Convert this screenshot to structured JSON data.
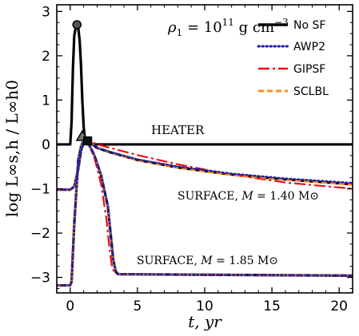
{
  "chart_data": {
    "type": "line",
    "xlabel": "t,  yr",
    "ylabel": "log L∞s,h / L∞h0",
    "xlim": [
      -1,
      21
    ],
    "ylim": [
      -3.35,
      3.15
    ],
    "xticks": [
      0,
      5,
      10,
      15,
      20
    ],
    "yticks": [
      -3,
      -2,
      -1,
      0,
      1,
      2,
      3
    ],
    "grid": false,
    "legend_position": "top-right",
    "colors": {
      "no_sf": "#000000",
      "awp2": "#2222aa",
      "gipsf": "#e8101a",
      "sclbl": "#ff8c1a"
    },
    "annotations": {
      "density": "ρ1 = 10^11 g cm^-3",
      "density_prefix": "ρ",
      "density_sub": "1",
      "density_eq": " = 10",
      "density_exp": "11",
      "density_unit": " g cm",
      "density_unit_exp": "−3",
      "heater": "HEATER",
      "surface_140": "SURFACE, M = 1.40 M⊙",
      "surface_140_prefix": "SURFACE,",
      "surface_140_var": "M",
      "surface_140_val": "= 1.40 M⊙",
      "surface_185": "SURFACE, M = 1.85 M⊙",
      "surface_185_prefix": "SURFACE,",
      "surface_185_var": "M",
      "surface_185_val": "= 1.85 M⊙"
    },
    "legend": [
      {
        "name": "No SF",
        "key": "no_sf",
        "dash": "solid",
        "width": 3.2
      },
      {
        "name": "AWP2",
        "key": "awp2",
        "dash": "dotted",
        "width": 2.6
      },
      {
        "name": "GIPSF",
        "key": "gipsf",
        "dash": "longdash",
        "width": 2.2
      },
      {
        "name": "SCLBL",
        "key": "sclbl",
        "dash": "dashed",
        "width": 2.6
      }
    ],
    "series": [
      {
        "curve": "heater",
        "key": "no_sf",
        "x": [
          -1,
          0,
          0.1,
          0.2,
          0.3,
          0.4,
          0.5,
          0.6,
          0.7,
          0.8,
          0.9,
          1.0,
          1.1,
          1.2,
          1.3,
          21
        ],
        "y": [
          0,
          0,
          0.5,
          1.7,
          2.45,
          2.62,
          2.7,
          2.62,
          2.35,
          1.8,
          1.0,
          0.4,
          0.1,
          0.02,
          0,
          0
        ]
      },
      {
        "curve": "surface_140",
        "key": "no_sf",
        "x": [
          -1,
          0,
          0.3,
          0.6,
          0.8,
          1.0,
          1.3,
          2.0,
          3.0,
          5.0,
          8.0,
          12.0,
          16.0,
          21.0
        ],
        "y": [
          -1.02,
          -1.02,
          -0.95,
          -0.55,
          -0.15,
          0.05,
          0.08,
          -0.08,
          -0.18,
          -0.35,
          -0.52,
          -0.68,
          -0.79,
          -0.9
        ]
      },
      {
        "curve": "surface_140",
        "key": "awp2",
        "x": [
          -1,
          0,
          0.3,
          0.6,
          0.8,
          1.0,
          1.3,
          2.0,
          3.0,
          5.0,
          8.0,
          12.0,
          16.0,
          21.0
        ],
        "y": [
          -1.02,
          -1.02,
          -0.95,
          -0.55,
          -0.15,
          0.05,
          0.08,
          -0.08,
          -0.18,
          -0.34,
          -0.5,
          -0.66,
          -0.77,
          -0.87
        ]
      },
      {
        "curve": "surface_140",
        "key": "gipsf",
        "x": [
          -1,
          0,
          0.3,
          0.6,
          0.8,
          1.0,
          1.3,
          2.0,
          3.0,
          5.0,
          8.0,
          12.0,
          16.0,
          21.0
        ],
        "y": [
          -1.02,
          -1.02,
          -0.93,
          -0.5,
          -0.12,
          0.06,
          0.09,
          0.0,
          -0.08,
          -0.24,
          -0.45,
          -0.68,
          -0.86,
          -1.0
        ]
      },
      {
        "curve": "surface_140",
        "key": "sclbl",
        "x": [
          -1,
          0,
          0.3,
          0.6,
          0.8,
          1.0,
          1.3,
          2.0,
          3.0,
          5.0,
          8.0,
          12.0,
          16.0,
          21.0
        ],
        "y": [
          -1.02,
          -1.02,
          -0.95,
          -0.55,
          -0.15,
          0.05,
          0.08,
          -0.08,
          -0.19,
          -0.36,
          -0.53,
          -0.69,
          -0.8,
          -0.91
        ]
      },
      {
        "curve": "surface_185",
        "key": "no_sf",
        "x": [
          -1,
          0,
          0.1,
          0.3,
          0.6,
          0.8,
          1.0,
          1.3,
          1.8,
          2.3,
          2.8,
          3.0,
          3.2,
          3.4,
          3.6,
          5,
          10,
          15,
          21
        ],
        "y": [
          -3.18,
          -3.18,
          -3.1,
          -1.8,
          -0.35,
          -0.05,
          0.08,
          0.05,
          -0.25,
          -0.7,
          -1.4,
          -2.0,
          -2.6,
          -2.88,
          -2.93,
          -2.93,
          -2.94,
          -2.95,
          -2.96
        ]
      },
      {
        "curve": "surface_185",
        "key": "awp2",
        "x": [
          -1,
          0,
          0.1,
          0.3,
          0.6,
          0.8,
          1.0,
          1.3,
          1.8,
          2.3,
          2.8,
          3.0,
          3.2,
          3.4,
          3.6,
          5,
          10,
          15,
          21
        ],
        "y": [
          -3.18,
          -3.18,
          -3.1,
          -1.8,
          -0.35,
          -0.05,
          0.08,
          0.05,
          -0.25,
          -0.7,
          -1.4,
          -2.0,
          -2.6,
          -2.88,
          -2.93,
          -2.93,
          -2.94,
          -2.95,
          -2.96
        ]
      },
      {
        "curve": "surface_185",
        "key": "gipsf",
        "x": [
          -1,
          0,
          0.1,
          0.3,
          0.6,
          0.8,
          1.0,
          1.3,
          1.8,
          2.3,
          2.7,
          2.9,
          3.1,
          3.3,
          3.5,
          5,
          10,
          15,
          21
        ],
        "y": [
          -3.18,
          -3.18,
          -3.1,
          -1.8,
          -0.35,
          -0.05,
          0.08,
          0.05,
          -0.3,
          -0.9,
          -1.7,
          -2.3,
          -2.75,
          -2.9,
          -2.93,
          -2.93,
          -2.94,
          -2.95,
          -2.96
        ]
      },
      {
        "curve": "surface_185",
        "key": "sclbl",
        "x": [
          -1,
          0,
          0.1,
          0.3,
          0.6,
          0.8,
          1.0,
          1.3,
          1.8,
          2.3,
          2.8,
          3.0,
          3.2,
          3.4,
          3.6,
          5,
          10,
          15,
          21
        ],
        "y": [
          -3.18,
          -3.18,
          -3.1,
          -1.8,
          -0.35,
          -0.05,
          0.08,
          0.05,
          -0.25,
          -0.7,
          -1.4,
          -2.0,
          -2.6,
          -2.88,
          -2.93,
          -2.93,
          -2.94,
          -2.95,
          -2.96
        ]
      }
    ],
    "markers": [
      {
        "shape": "circle",
        "x": 0.5,
        "y": 2.7
      },
      {
        "shape": "triangle",
        "x": 0.9,
        "y": 0.18
      },
      {
        "shape": "square",
        "x": 1.3,
        "y": 0.08
      }
    ]
  }
}
